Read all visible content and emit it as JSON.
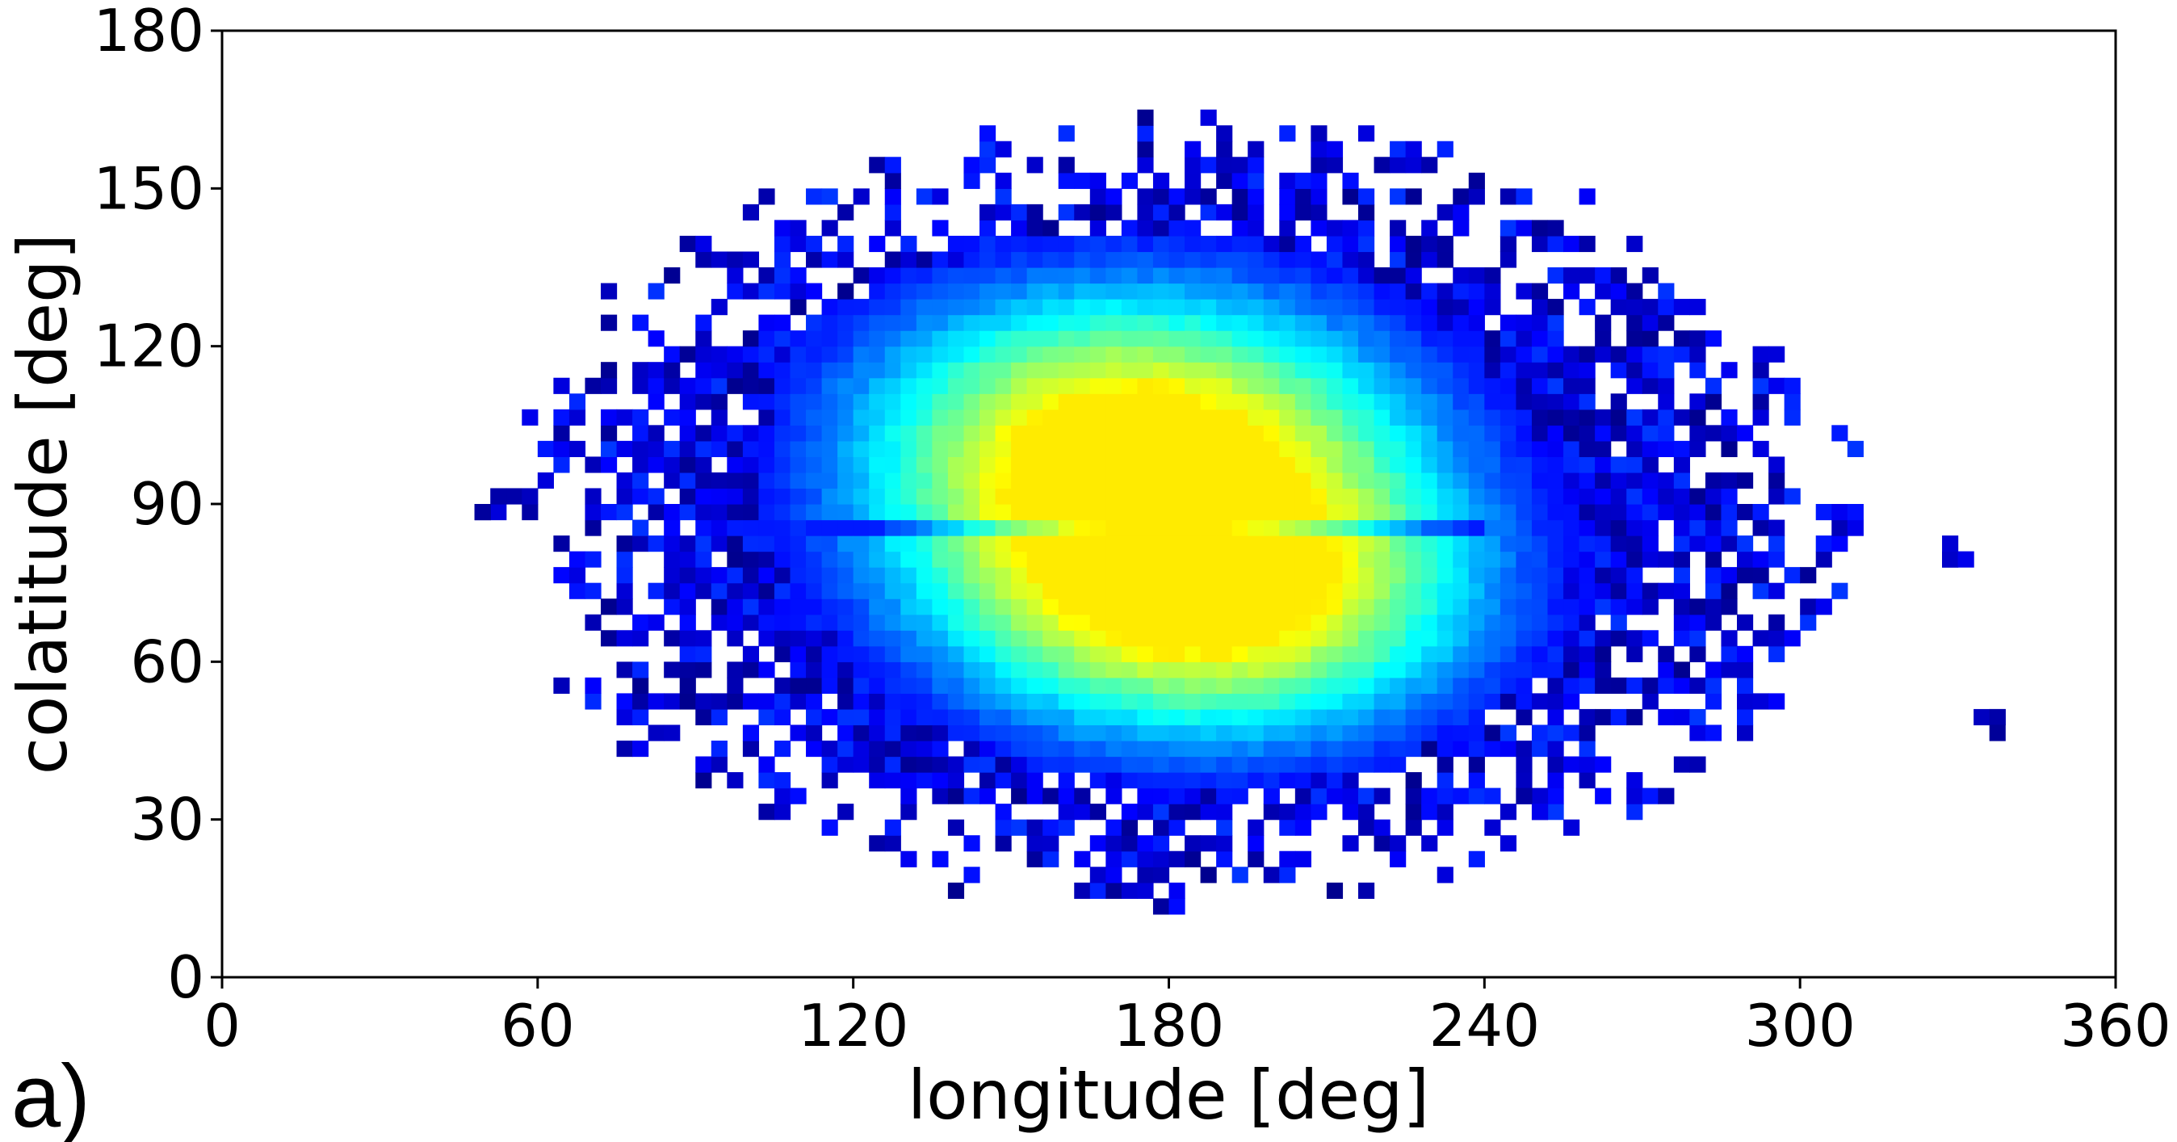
{
  "panel_label": "a)",
  "chart_data": {
    "type": "heatmap",
    "title": "",
    "xlabel": "longitude [deg]",
    "ylabel": "colatitude [deg]",
    "xlim": [
      0,
      360
    ],
    "ylim": [
      0,
      180
    ],
    "xticks": [
      0,
      60,
      120,
      180,
      240,
      300,
      360
    ],
    "yticks": [
      0,
      30,
      60,
      90,
      120,
      150,
      180
    ],
    "xtick_labels": [
      "0",
      "60",
      "120",
      "180",
      "240",
      "300",
      "360"
    ],
    "ytick_labels": [
      "0",
      "30",
      "60",
      "90",
      "120",
      "150",
      "180"
    ],
    "grid": false,
    "legend": "none",
    "colormap": "jet",
    "colormap_stops": [
      "#00007f",
      "#0000ff",
      "#007fff",
      "#00ffff",
      "#7fff7f",
      "#ffff00",
      "#ff7f00"
    ],
    "bin_size_deg": 3,
    "density_components": [
      {
        "lon": 172,
        "colat": 104,
        "lon_sigma": 40,
        "colat_sigma": 22,
        "peak": 0.82
      },
      {
        "lon": 188,
        "colat": 70,
        "lon_sigma": 38,
        "colat_sigma": 20,
        "peak": 0.8
      }
    ],
    "envelope": {
      "lon_center": 182,
      "colat_center": 88,
      "lon_half_width": 125,
      "colat_half_width": 72
    },
    "equatorial_gap": {
      "colat": 86,
      "lon_range": [
        110,
        240
      ]
    },
    "outlier_clusters": [
      {
        "lon": 52,
        "colat": 90
      },
      {
        "lon": 330,
        "colat": 79
      },
      {
        "lon": 337,
        "colat": 48
      },
      {
        "lon": 251,
        "colat": 34
      }
    ]
  }
}
